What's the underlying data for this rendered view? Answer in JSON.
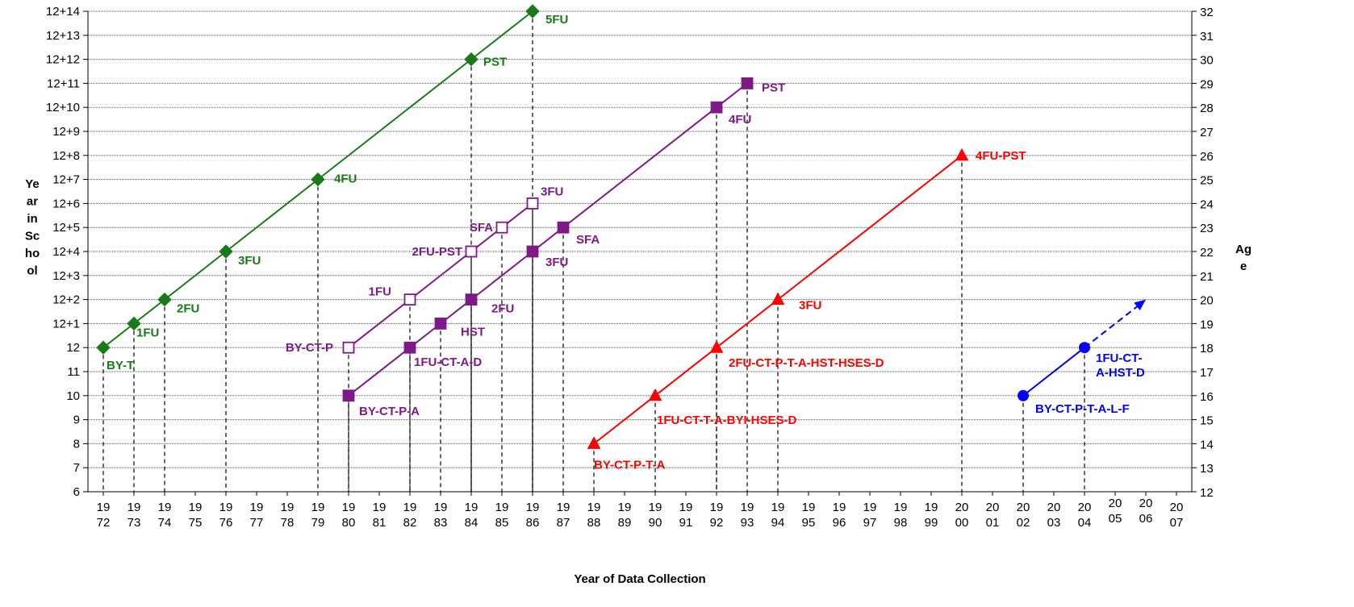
{
  "chart_data": {
    "type": "line",
    "xlabel": "Year of Data Collection",
    "ylabel_left": [
      "Ye",
      "ar",
      "in",
      "Sc",
      "ho",
      "ol"
    ],
    "ylabel_right": [
      "Ag",
      "e"
    ],
    "x_ticks": [
      {
        "year": 1972,
        "top": "19",
        "bottom": "72"
      },
      {
        "year": 1973,
        "top": "19",
        "bottom": "73"
      },
      {
        "year": 1974,
        "top": "19",
        "bottom": "74"
      },
      {
        "year": 1975,
        "top": "19",
        "bottom": "75"
      },
      {
        "year": 1976,
        "top": "19",
        "bottom": "76"
      },
      {
        "year": 1977,
        "top": "19",
        "bottom": "77"
      },
      {
        "year": 1978,
        "top": "19",
        "bottom": "78"
      },
      {
        "year": 1979,
        "top": "19",
        "bottom": "79"
      },
      {
        "year": 1980,
        "top": "19",
        "bottom": "80"
      },
      {
        "year": 1981,
        "top": "19",
        "bottom": "81"
      },
      {
        "year": 1982,
        "top": "19",
        "bottom": "82"
      },
      {
        "year": 1983,
        "top": "19",
        "bottom": "83"
      },
      {
        "year": 1984,
        "top": "19",
        "bottom": "84"
      },
      {
        "year": 1985,
        "top": "19",
        "bottom": "85"
      },
      {
        "year": 1986,
        "top": "19",
        "bottom": "86"
      },
      {
        "year": 1987,
        "top": "19",
        "bottom": "87"
      },
      {
        "year": 1988,
        "top": "19",
        "bottom": "88"
      },
      {
        "year": 1989,
        "top": "19",
        "bottom": "89"
      },
      {
        "year": 1990,
        "top": "19",
        "bottom": "90"
      },
      {
        "year": 1991,
        "top": "19",
        "bottom": "91"
      },
      {
        "year": 1992,
        "top": "19",
        "bottom": "92"
      },
      {
        "year": 1993,
        "top": "19",
        "bottom": "93"
      },
      {
        "year": 1994,
        "top": "19",
        "bottom": "94"
      },
      {
        "year": 1995,
        "top": "19",
        "bottom": "95"
      },
      {
        "year": 1996,
        "top": "19",
        "bottom": "96"
      },
      {
        "year": 1997,
        "top": "19",
        "bottom": "97"
      },
      {
        "year": 1998,
        "top": "19",
        "bottom": "98"
      },
      {
        "year": 1999,
        "top": "19",
        "bottom": "99"
      },
      {
        "year": 2000,
        "top": "20",
        "bottom": "00"
      },
      {
        "year": 2001,
        "top": "20",
        "bottom": "01"
      },
      {
        "year": 2002,
        "top": "20",
        "bottom": "02"
      },
      {
        "year": 2003,
        "top": "20",
        "bottom": "03"
      },
      {
        "year": 2004,
        "top": "20",
        "bottom": "04"
      },
      {
        "year": 2005,
        "top": "20",
        "bottom": "05"
      },
      {
        "year": 2006,
        "top": "20",
        "bottom": "06"
      },
      {
        "year": 2007,
        "top": "20",
        "bottom": "07"
      }
    ],
    "y_ticks_left": [
      "6",
      "7",
      "8",
      "9",
      "10",
      "11",
      "12",
      "12+1",
      "12+2",
      "12+3",
      "12+4",
      "12+5",
      "12+6",
      "12+7",
      "12+8",
      "12+9",
      "12+10",
      "12+11",
      "12+12",
      "12+13",
      "12+14"
    ],
    "y_ticks_right": [
      "12",
      "13",
      "14",
      "15",
      "16",
      "17",
      "18",
      "19",
      "20",
      "21",
      "22",
      "23",
      "24",
      "25",
      "26",
      "27",
      "28",
      "29",
      "30",
      "31",
      "32"
    ],
    "y_grid_values": [
      6,
      7,
      8,
      9,
      10,
      11,
      12,
      13,
      14,
      15,
      16,
      17,
      18,
      19,
      20,
      21,
      22,
      23,
      24,
      25,
      26
    ],
    "grid": "horizontal dotted",
    "series": [
      {
        "color": "#1a7a1a",
        "marker": "diamond",
        "filled": true,
        "points": [
          {
            "x": 1972,
            "y": 12,
            "label": "BY-T"
          },
          {
            "x": 1973,
            "y": 13,
            "label": "1FU"
          },
          {
            "x": 1974,
            "y": 14,
            "label": "2FU"
          },
          {
            "x": 1976,
            "y": 16,
            "label": "3FU"
          },
          {
            "x": 1979,
            "y": 19,
            "label": "4FU"
          },
          {
            "x": 1984,
            "y": 24,
            "label": "PST"
          },
          {
            "x": 1986,
            "y": 26,
            "label": "5FU"
          }
        ]
      },
      {
        "color": "#7d1a86",
        "marker": "square",
        "filled": false,
        "points": [
          {
            "x": 1980,
            "y": 12,
            "label": "BY-CT-P"
          },
          {
            "x": 1982,
            "y": 14,
            "label": "1FU"
          },
          {
            "x": 1984,
            "y": 16,
            "label": "2FU-PST"
          },
          {
            "x": 1985,
            "y": 17,
            "label": "SFA"
          },
          {
            "x": 1986,
            "y": 18,
            "label": "3FU"
          }
        ]
      },
      {
        "color": "#7d1a86",
        "marker": "square",
        "filled": true,
        "points": [
          {
            "x": 1980,
            "y": 10,
            "label": "BY-CT-P-A"
          },
          {
            "x": 1982,
            "y": 12,
            "label": "1FU-CT-A-D"
          },
          {
            "x": 1983,
            "y": 13,
            "label": "HST"
          },
          {
            "x": 1984,
            "y": 14,
            "label": "2FU"
          },
          {
            "x": 1986,
            "y": 16,
            "label": "3FU"
          },
          {
            "x": 1987,
            "y": 17,
            "label": "SFA"
          },
          {
            "x": 1992,
            "y": 22,
            "label": "4FU"
          },
          {
            "x": 1993,
            "y": 23,
            "label": "PST"
          }
        ]
      },
      {
        "color": "#ff0000",
        "marker": "triangle",
        "filled": true,
        "points": [
          {
            "x": 1988,
            "y": 8,
            "label": "BY-CT-P-T-A"
          },
          {
            "x": 1990,
            "y": 10,
            "label": "1FU-CT-T-A-BYI-HSES-D"
          },
          {
            "x": 1992,
            "y": 12,
            "label": "2FU-CT-P-T-A-HST-HSES-D"
          },
          {
            "x": 1994,
            "y": 14,
            "label": "3FU"
          },
          {
            "x": 2000,
            "y": 20,
            "label": "4FU-PST"
          }
        ]
      },
      {
        "color": "#0000ff",
        "marker": "circle",
        "filled": true,
        "points": [
          {
            "x": 2002,
            "y": 10,
            "label": "BY-CT-P-T-A-L-F"
          },
          {
            "x": 2004,
            "y": 12,
            "label": [
              "1FU-CT-",
              "A-HST-D"
            ]
          }
        ],
        "projection": {
          "x": 2006,
          "y": 14
        }
      }
    ]
  }
}
